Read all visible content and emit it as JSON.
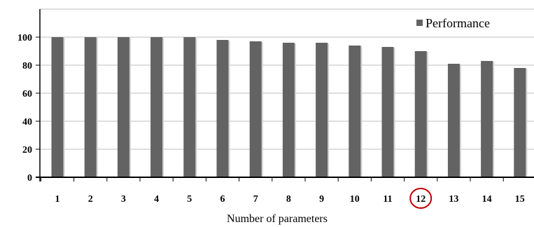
{
  "chart_data": {
    "type": "bar",
    "categories": [
      "1",
      "2",
      "3",
      "4",
      "5",
      "6",
      "7",
      "8",
      "9",
      "10",
      "11",
      "12",
      "13",
      "14",
      "15"
    ],
    "series": [
      {
        "name": "Performance",
        "values": [
          100,
          100,
          100,
          100,
          100,
          98,
          97,
          96,
          96,
          94,
          93,
          90,
          81,
          83,
          78
        ],
        "color": "#636363"
      }
    ],
    "xlabel": "Number of parameters",
    "ylabel": "",
    "ylim": [
      0,
      120
    ],
    "yticks": [
      0,
      20,
      40,
      60,
      80,
      100
    ],
    "grid": true,
    "legend_position": "top-right",
    "highlighted_category": "12",
    "highlight_color": "#c00000"
  }
}
